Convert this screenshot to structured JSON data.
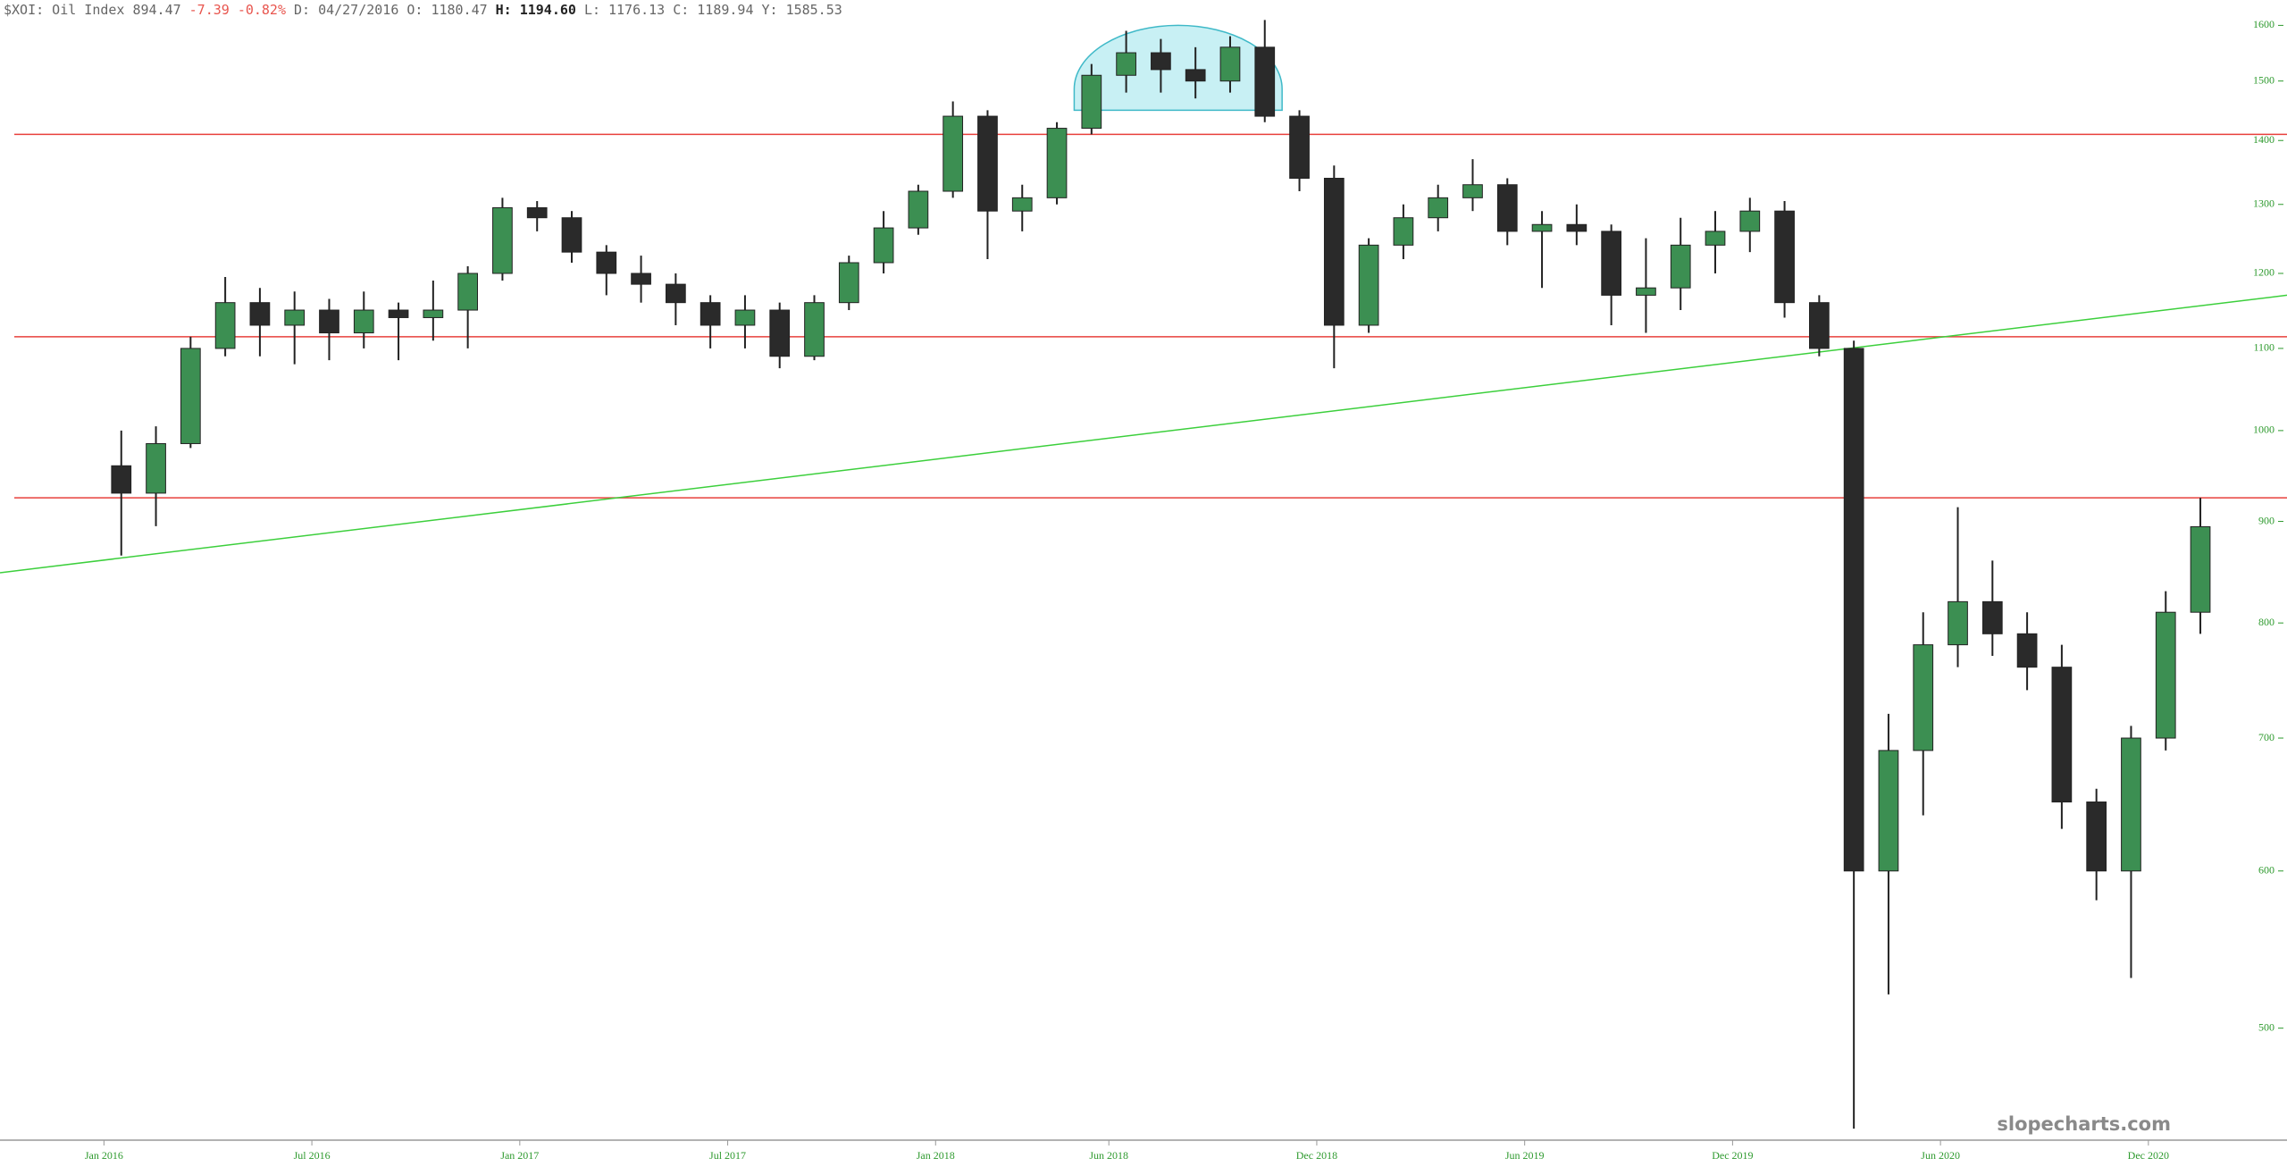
{
  "header": {
    "symbol": "$XOI: Oil Index",
    "last": "894.47",
    "change": "-7.39",
    "change_pct": "-0.82%",
    "date_label": "D:",
    "date": "04/27/2016",
    "open_label": "O:",
    "open": "1180.47",
    "high_label": "H:",
    "high": "1194.60",
    "low_label": "L:",
    "low": "1176.13",
    "close_label": "C:",
    "close": "1189.94",
    "y_label": "Y:",
    "y_value": "1585.53"
  },
  "watermark": "slopecharts.com",
  "chart_data": {
    "type": "candlestick",
    "log_scale": true,
    "grid": false,
    "up_color": "#3c8f52",
    "down_color": "#2a2a2a",
    "wick_color": "#222222",
    "x": [
      "2016-01",
      "2016-02",
      "2016-03",
      "2016-04",
      "2016-05",
      "2016-06",
      "2016-07",
      "2016-08",
      "2016-09",
      "2016-10",
      "2016-11",
      "2016-12",
      "2017-01",
      "2017-02",
      "2017-03",
      "2017-04",
      "2017-05",
      "2017-06",
      "2017-07",
      "2017-08",
      "2017-09",
      "2017-10",
      "2017-11",
      "2017-12",
      "2018-01",
      "2018-02",
      "2018-03",
      "2018-04",
      "2018-05",
      "2018-06",
      "2018-07",
      "2018-08",
      "2018-09",
      "2018-10",
      "2018-11",
      "2018-12",
      "2019-01",
      "2019-02",
      "2019-03",
      "2019-04",
      "2019-05",
      "2019-06",
      "2019-07",
      "2019-08",
      "2019-09",
      "2019-10",
      "2019-11",
      "2019-12",
      "2020-01",
      "2020-02",
      "2020-03",
      "2020-04",
      "2020-05",
      "2020-06",
      "2020-07",
      "2020-08",
      "2020-09",
      "2020-10",
      "2020-11",
      "2020-12",
      "2021-01"
    ],
    "open": [
      960,
      930,
      985,
      1100,
      1160,
      1130,
      1150,
      1120,
      1150,
      1140,
      1150,
      1200,
      1295,
      1280,
      1230,
      1200,
      1185,
      1160,
      1130,
      1150,
      1090,
      1160,
      1215,
      1265,
      1320,
      1440,
      1290,
      1310,
      1420,
      1510,
      1550,
      1520,
      1500,
      1560,
      1440,
      1340,
      1130,
      1240,
      1280,
      1310,
      1330,
      1260,
      1270,
      1260,
      1170,
      1180,
      1240,
      1260,
      1290,
      1160,
      1100,
      600,
      690,
      780,
      820,
      790,
      760,
      650,
      600,
      700,
      810
    ],
    "high": [
      1000,
      1005,
      1115,
      1195,
      1180,
      1175,
      1165,
      1175,
      1160,
      1190,
      1210,
      1310,
      1305,
      1290,
      1240,
      1225,
      1200,
      1170,
      1170,
      1160,
      1170,
      1225,
      1290,
      1330,
      1465,
      1450,
      1330,
      1430,
      1530,
      1590,
      1575,
      1560,
      1580,
      1610,
      1450,
      1360,
      1250,
      1300,
      1330,
      1370,
      1340,
      1290,
      1300,
      1270,
      1250,
      1280,
      1290,
      1310,
      1305,
      1170,
      1110,
      720,
      810,
      915,
      860,
      810,
      780,
      660,
      710,
      830,
      925
    ],
    "low": [
      865,
      895,
      980,
      1090,
      1090,
      1080,
      1085,
      1100,
      1085,
      1110,
      1100,
      1190,
      1260,
      1215,
      1170,
      1160,
      1130,
      1100,
      1100,
      1075,
      1085,
      1150,
      1200,
      1255,
      1310,
      1220,
      1260,
      1300,
      1410,
      1480,
      1480,
      1470,
      1480,
      1430,
      1320,
      1075,
      1120,
      1220,
      1260,
      1290,
      1240,
      1180,
      1240,
      1130,
      1120,
      1150,
      1200,
      1230,
      1140,
      1090,
      445,
      520,
      640,
      760,
      770,
      740,
      630,
      580,
      530,
      690,
      790
    ],
    "close": [
      930,
      985,
      1100,
      1160,
      1130,
      1150,
      1120,
      1150,
      1140,
      1150,
      1200,
      1295,
      1280,
      1230,
      1200,
      1185,
      1160,
      1130,
      1150,
      1090,
      1160,
      1215,
      1265,
      1320,
      1440,
      1290,
      1310,
      1420,
      1510,
      1550,
      1520,
      1500,
      1560,
      1440,
      1340,
      1130,
      1240,
      1280,
      1310,
      1330,
      1260,
      1270,
      1260,
      1170,
      1180,
      1240,
      1260,
      1290,
      1160,
      1100,
      600,
      690,
      780,
      820,
      790,
      760,
      650,
      600,
      700,
      810,
      894.47
    ],
    "xlim": [
      "2015-10",
      "2021-04"
    ],
    "xticks": [
      {
        "value": "2016-01",
        "label": "Jan 2016"
      },
      {
        "value": "2016-07",
        "label": "Jul 2016"
      },
      {
        "value": "2017-01",
        "label": "Jan 2017"
      },
      {
        "value": "2017-07",
        "label": "Jul 2017"
      },
      {
        "value": "2018-01",
        "label": "Jan 2018"
      },
      {
        "value": "2018-06",
        "label": "Jun 2018"
      },
      {
        "value": "2018-12",
        "label": "Dec 2018"
      },
      {
        "value": "2019-06",
        "label": "Jun 2019"
      },
      {
        "value": "2019-12",
        "label": "Dec 2019"
      },
      {
        "value": "2020-06",
        "label": "Jun 2020"
      },
      {
        "value": "2020-12",
        "label": "Dec 2020"
      }
    ],
    "ylim": [
      440,
      1614
    ],
    "yticks": [
      500,
      600,
      700,
      800,
      900,
      1000,
      1100,
      1200,
      1300,
      1400,
      1500,
      1600
    ],
    "hlines": [
      1410,
      1115,
      925
    ],
    "hline_color": "#e8403c",
    "trendline": [
      [
        "2015-10",
        848
      ],
      [
        "2021-04",
        1170
      ]
    ],
    "trendline_color": "#3ccf3c",
    "highlight": {
      "from": "2018-05",
      "to": "2018-11",
      "low": 1450,
      "high": 1600,
      "color": "#c8f0f4",
      "edge": "#3fb9c8"
    }
  }
}
